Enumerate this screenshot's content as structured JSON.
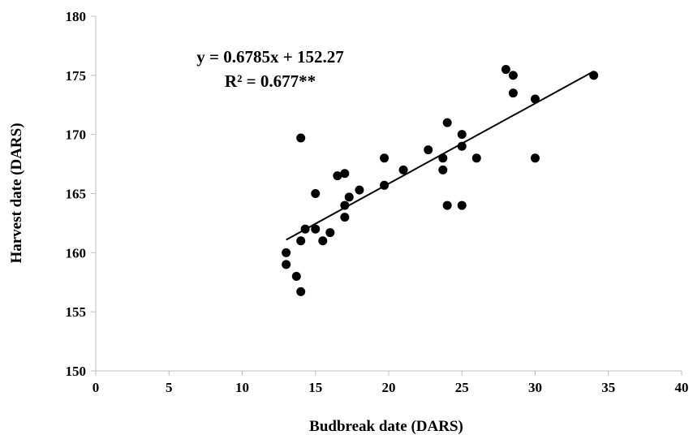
{
  "chart_data": {
    "type": "scatter",
    "xlabel": "Budbreak date (DARS)",
    "ylabel": "Harvest date (DARS)",
    "xlim": [
      0,
      40
    ],
    "ylim": [
      150,
      180
    ],
    "xticks": [
      0,
      5,
      10,
      15,
      20,
      25,
      30,
      35,
      40
    ],
    "yticks": [
      150,
      155,
      160,
      165,
      170,
      175,
      180
    ],
    "grid": false,
    "legend": "none",
    "annotations": {
      "equation": "y = 0.6785x + 152.27",
      "r_squared": "R² = 0.677**"
    },
    "trendline": {
      "slope": 0.6785,
      "intercept": 152.27,
      "x_range": [
        13,
        34
      ]
    },
    "marker_color": "#000000",
    "points": [
      {
        "x": 13.0,
        "y": 160.0
      },
      {
        "x": 13.0,
        "y": 159.0
      },
      {
        "x": 13.7,
        "y": 158.0
      },
      {
        "x": 14.0,
        "y": 156.7
      },
      {
        "x": 14.0,
        "y": 161.0
      },
      {
        "x": 14.0,
        "y": 169.7
      },
      {
        "x": 14.3,
        "y": 162.0
      },
      {
        "x": 15.0,
        "y": 162.0
      },
      {
        "x": 15.0,
        "y": 165.0
      },
      {
        "x": 15.5,
        "y": 161.0
      },
      {
        "x": 16.0,
        "y": 161.7
      },
      {
        "x": 16.5,
        "y": 166.5
      },
      {
        "x": 17.0,
        "y": 166.7
      },
      {
        "x": 17.0,
        "y": 164.0
      },
      {
        "x": 17.0,
        "y": 163.0
      },
      {
        "x": 17.3,
        "y": 164.7
      },
      {
        "x": 18.0,
        "y": 165.3
      },
      {
        "x": 19.7,
        "y": 168.0
      },
      {
        "x": 19.7,
        "y": 165.7
      },
      {
        "x": 21.0,
        "y": 167.0
      },
      {
        "x": 22.7,
        "y": 168.7
      },
      {
        "x": 23.7,
        "y": 168.0
      },
      {
        "x": 23.7,
        "y": 167.0
      },
      {
        "x": 24.0,
        "y": 171.0
      },
      {
        "x": 24.0,
        "y": 164.0
      },
      {
        "x": 25.0,
        "y": 170.0
      },
      {
        "x": 25.0,
        "y": 169.0
      },
      {
        "x": 25.0,
        "y": 164.0
      },
      {
        "x": 26.0,
        "y": 168.0
      },
      {
        "x": 28.0,
        "y": 175.5
      },
      {
        "x": 28.5,
        "y": 175.0
      },
      {
        "x": 28.5,
        "y": 173.5
      },
      {
        "x": 30.0,
        "y": 173.0
      },
      {
        "x": 30.0,
        "y": 168.0
      },
      {
        "x": 34.0,
        "y": 175.0
      }
    ]
  }
}
